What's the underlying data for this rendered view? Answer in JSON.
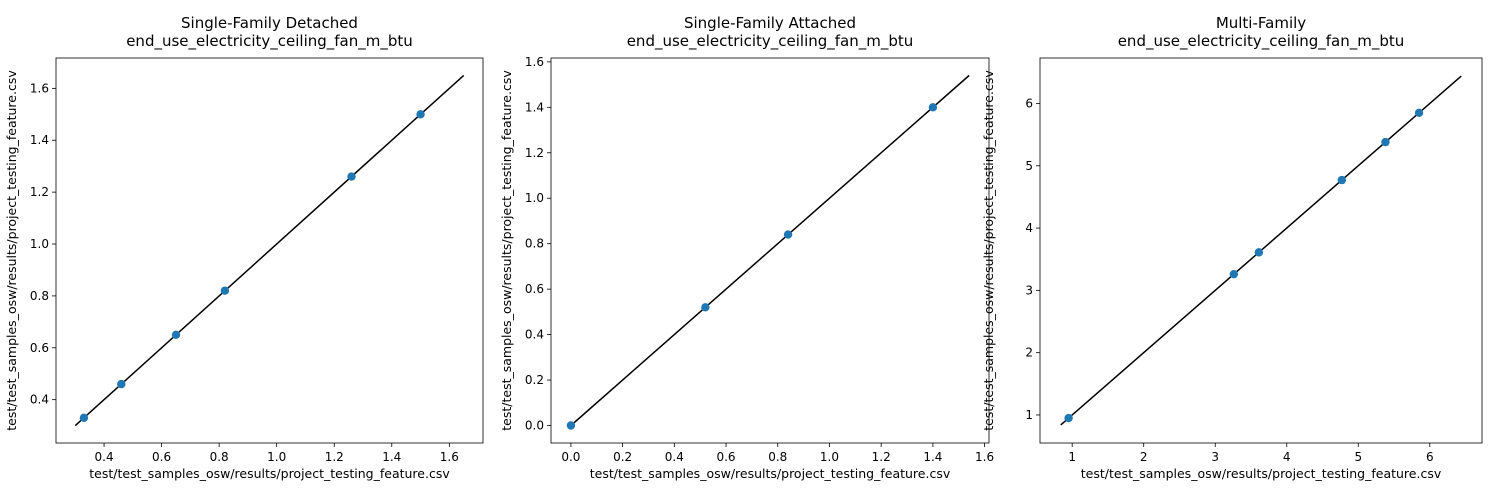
{
  "chart_data": [
    {
      "type": "scatter",
      "title": "Single-Family Detached\nend_use_electricity_ceiling_fan_m_btu",
      "xlabel": "test/test_samples_osw/results/project_testing_feature.csv",
      "ylabel": "test/test_samples_osw/results/project_testing_feature.csv",
      "xlim": [
        0.233,
        1.717
      ],
      "ylim": [
        0.233,
        1.717
      ],
      "xticks": [
        0.4,
        0.6,
        0.8,
        1.0,
        1.2,
        1.4,
        1.6
      ],
      "yticks": [
        0.4,
        0.6,
        0.8,
        1.0,
        1.2,
        1.4,
        1.6
      ],
      "tick_decimals": 1,
      "x": [
        0.33,
        0.46,
        0.65,
        0.82,
        1.26,
        1.5
      ],
      "y": [
        0.33,
        0.46,
        0.65,
        0.82,
        1.26,
        1.5
      ],
      "line": [
        [
          0.3,
          0.3
        ],
        [
          1.65,
          1.65
        ]
      ],
      "grid": false,
      "point_color": "#1f77b4",
      "line_color": "#000000"
    },
    {
      "type": "scatter",
      "title": "Single-Family Attached\nend_use_electricity_ceiling_fan_m_btu",
      "xlabel": "test/test_samples_osw/results/project_testing_feature.csv",
      "ylabel": "test/test_samples_osw/results/project_testing_feature.csv",
      "xlim": [
        -0.077,
        1.617
      ],
      "ylim": [
        -0.077,
        1.617
      ],
      "xticks": [
        0.0,
        0.2,
        0.4,
        0.6,
        0.8,
        1.0,
        1.2,
        1.4,
        1.6
      ],
      "yticks": [
        0.0,
        0.2,
        0.4,
        0.6,
        0.8,
        1.0,
        1.2,
        1.4,
        1.6
      ],
      "tick_decimals": 1,
      "x": [
        0.0,
        0.52,
        0.84,
        1.4
      ],
      "y": [
        0.0,
        0.52,
        0.84,
        1.4
      ],
      "line": [
        [
          0.0,
          0.0
        ],
        [
          1.54,
          1.54
        ]
      ],
      "grid": false,
      "point_color": "#1f77b4",
      "line_color": "#000000"
    },
    {
      "type": "scatter",
      "title": "Multi-Family\nend_use_electricity_ceiling_fan_m_btu",
      "xlabel": "test/test_samples_osw/results/project_testing_feature.csv",
      "ylabel": "test/test_samples_osw/results/project_testing_feature.csv",
      "xlim": [
        0.55,
        6.73
      ],
      "ylim": [
        0.55,
        6.73
      ],
      "xticks": [
        1,
        2,
        3,
        4,
        5,
        6
      ],
      "yticks": [
        1,
        2,
        3,
        4,
        5,
        6
      ],
      "tick_decimals": 0,
      "x": [
        0.95,
        3.26,
        3.61,
        4.77,
        5.38,
        5.85
      ],
      "y": [
        0.95,
        3.26,
        3.61,
        4.77,
        5.38,
        5.85
      ],
      "line": [
        [
          0.84,
          0.84
        ],
        [
          6.44,
          6.44
        ]
      ],
      "grid": false,
      "point_color": "#1f77b4",
      "line_color": "#000000"
    }
  ]
}
